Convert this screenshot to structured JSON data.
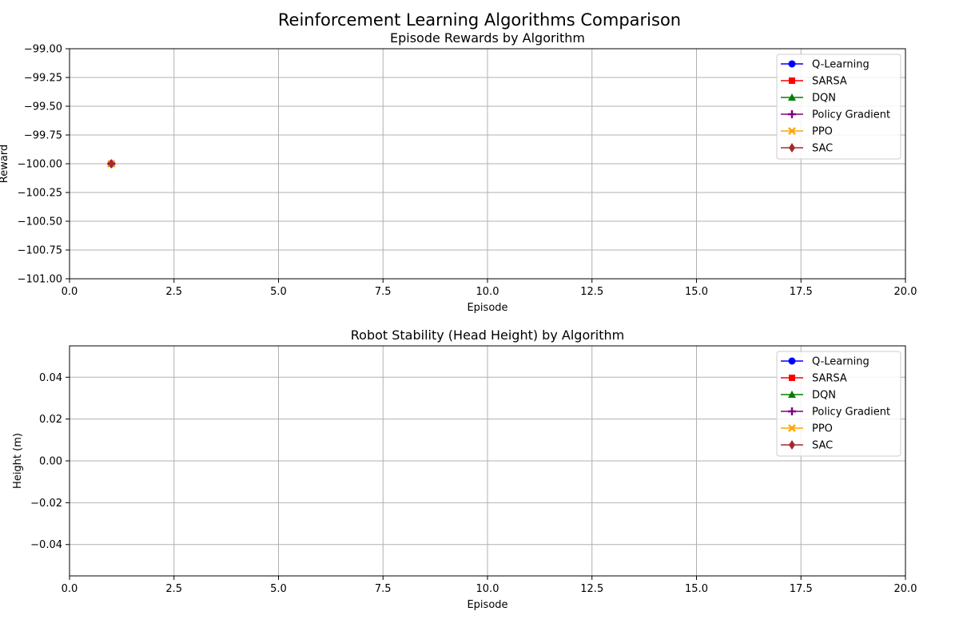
{
  "figure": {
    "suptitle": "Reinforcement Learning Algorithms Comparison"
  },
  "chart_data": [
    {
      "type": "line",
      "title": "Episode Rewards by Algorithm",
      "xlabel": "Episode",
      "ylabel": "Reward",
      "xlim": [
        0,
        20
      ],
      "ylim": [
        -101.0,
        -99.0
      ],
      "xticks": [
        "0.0",
        "2.5",
        "5.0",
        "7.5",
        "10.0",
        "12.5",
        "15.0",
        "17.5",
        "20.0"
      ],
      "yticks": [
        "−99.00",
        "−99.25",
        "−99.50",
        "−99.75",
        "−100.00",
        "−100.25",
        "−100.50",
        "−100.75",
        "−101.00"
      ],
      "grid": true,
      "legend_position": "top-right",
      "series": [
        {
          "name": "Q-Learning",
          "color": "#0000ff",
          "marker": "circle",
          "x": [
            1
          ],
          "y": [
            -100.0
          ]
        },
        {
          "name": "SARSA",
          "color": "#ff0000",
          "marker": "square",
          "x": [
            1
          ],
          "y": [
            -100.0
          ]
        },
        {
          "name": "DQN",
          "color": "#008000",
          "marker": "triangle",
          "x": [
            1
          ],
          "y": [
            -100.0
          ]
        },
        {
          "name": "Policy Gradient",
          "color": "#800080",
          "marker": "plus",
          "x": [
            1
          ],
          "y": [
            -100.0
          ]
        },
        {
          "name": "PPO",
          "color": "#ffa500",
          "marker": "x",
          "x": [
            1
          ],
          "y": [
            -100.0
          ]
        },
        {
          "name": "SAC",
          "color": "#a52a2a",
          "marker": "diamond",
          "x": [
            1
          ],
          "y": [
            -100.0
          ]
        }
      ]
    },
    {
      "type": "line",
      "title": "Robot Stability (Head Height) by Algorithm",
      "xlabel": "Episode",
      "ylabel": "Height (m)",
      "xlim": [
        0,
        20
      ],
      "ylim": [
        -0.055,
        0.055
      ],
      "xticks": [
        "0.0",
        "2.5",
        "5.0",
        "7.5",
        "10.0",
        "12.5",
        "15.0",
        "17.5",
        "20.0"
      ],
      "yticks": [
        "0.04",
        "0.02",
        "0.00",
        "−0.02",
        "−0.04"
      ],
      "grid": true,
      "legend_position": "top-right",
      "series": [
        {
          "name": "Q-Learning",
          "color": "#0000ff",
          "marker": "circle",
          "x": [],
          "y": []
        },
        {
          "name": "SARSA",
          "color": "#ff0000",
          "marker": "square",
          "x": [],
          "y": []
        },
        {
          "name": "DQN",
          "color": "#008000",
          "marker": "triangle",
          "x": [],
          "y": []
        },
        {
          "name": "Policy Gradient",
          "color": "#800080",
          "marker": "plus",
          "x": [],
          "y": []
        },
        {
          "name": "PPO",
          "color": "#ffa500",
          "marker": "x",
          "x": [],
          "y": []
        },
        {
          "name": "SAC",
          "color": "#a52a2a",
          "marker": "diamond",
          "x": [],
          "y": []
        }
      ]
    }
  ]
}
